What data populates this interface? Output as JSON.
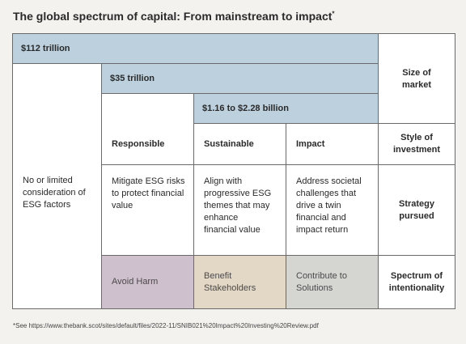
{
  "title": "The global spectrum of capital: From mainstream to impact",
  "title_mark": "*",
  "bands": {
    "b1": "$112 trillion",
    "b2": "$35 trillion",
    "b3": "$1.16 to $2.28 billion"
  },
  "row_labels": {
    "size": "Size of market",
    "style": "Style of investment",
    "strategy": "Strategy pursued",
    "spectrum": "Spectrum of intentionality"
  },
  "left_note": "No or limited consideration of ESG factors",
  "columns": [
    {
      "header": "Responsible",
      "strategy": "Mitigate ESG risks to protect financial value",
      "intent": "Avoid Harm",
      "intent_color": "#cec0cc"
    },
    {
      "header": "Sustainable",
      "strategy": "Align with progressive ESG themes that may enhance financial value",
      "intent": "Benefit Stakeholders",
      "intent_color": "#e3d7c6"
    },
    {
      "header": "Impact",
      "strategy": "Address societal challenges that drive a twin financial and impact return",
      "intent": "Contribute to Solutions",
      "intent_color": "#d5d6d2"
    }
  ],
  "colors": {
    "band": "#bcd0dd",
    "border": "#6a6a6a",
    "background": "#f4f2ee"
  },
  "footnote": {
    "prefix": "*See ",
    "url": "https://www.thebank.scot/sites/default/files/2022-11/SNIB021%20Impact%20Investing%20Review.pdf"
  }
}
